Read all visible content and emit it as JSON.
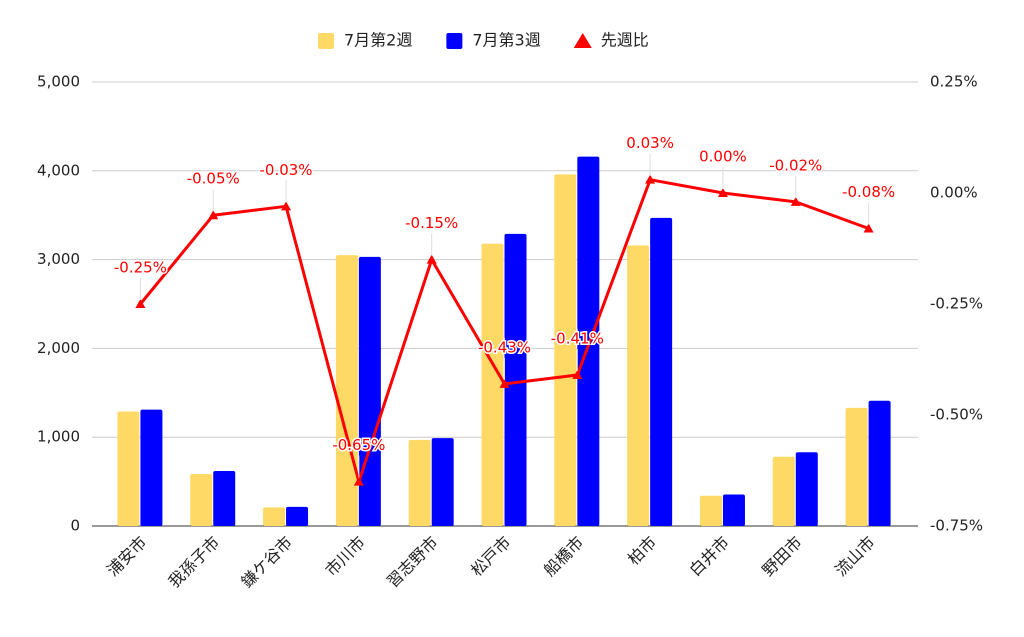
{
  "chart_data": {
    "type": "bar_line",
    "categories": [
      "浦安市",
      "我孫子市",
      "鎌ケ谷市",
      "市川市",
      "習志野市",
      "松戸市",
      "船橋市",
      "柏市",
      "白井市",
      "野田市",
      "流山市"
    ],
    "series": [
      {
        "name": "7月第2週",
        "color": "#ffd966",
        "type": "bar",
        "values": [
          1290,
          585,
          210,
          3050,
          970,
          3180,
          3960,
          3160,
          340,
          780,
          1330
        ]
      },
      {
        "name": "7月第3週",
        "color": "#0000ff",
        "type": "bar",
        "values": [
          1310,
          620,
          215,
          3030,
          990,
          3290,
          4160,
          3470,
          355,
          830,
          1410
        ]
      },
      {
        "name": "先週比",
        "color": "#ff0000",
        "type": "line",
        "axis": "y2",
        "values": [
          -0.25,
          -0.05,
          -0.03,
          -0.65,
          -0.15,
          -0.43,
          -0.41,
          0.03,
          0.0,
          -0.02,
          -0.08
        ],
        "value_labels": [
          "-0.25%",
          "-0.05%",
          "-0.03%",
          "-0.65%",
          "-0.15%",
          "-0.43%",
          "-0.41%",
          "0.03%",
          "0.00%",
          "-0.02%",
          "-0.08%"
        ]
      }
    ],
    "ylim": [
      0,
      5000
    ],
    "yticks": [
      0,
      {
        "value": 1000,
        "label": "1,000"
      },
      {
        "value": 2000,
        "label": "2,000"
      },
      {
        "value": 3000,
        "label": "3,000"
      },
      {
        "value": 4000,
        "label": "4,000"
      },
      {
        "value": 5000,
        "label": "5,000"
      }
    ],
    "y2lim": [
      -0.75,
      0.25
    ],
    "y2ticks": [
      {
        "value": -0.75,
        "label": "-0.75%"
      },
      {
        "value": -0.5,
        "label": "-0.50%"
      },
      {
        "value": -0.25,
        "label": "-0.25%"
      },
      {
        "value": 0,
        "label": "0.00%"
      },
      {
        "value": 0.25,
        "label": "0.25%"
      }
    ],
    "grid": true,
    "legend": "top"
  }
}
